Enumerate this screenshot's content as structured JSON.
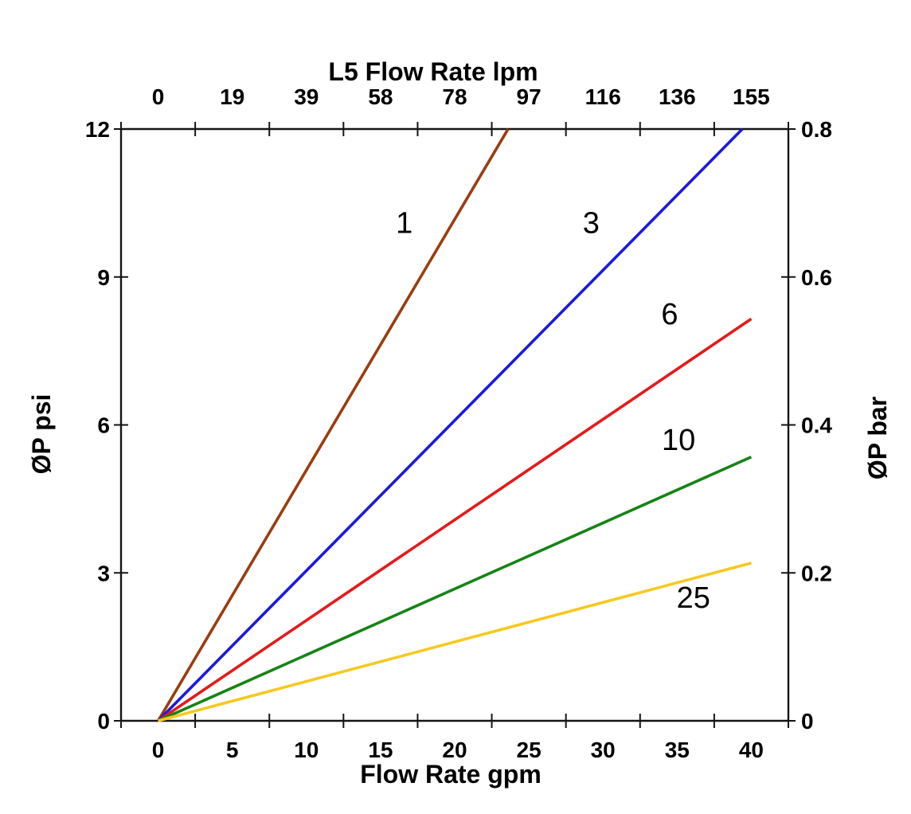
{
  "chart_data": {
    "type": "line",
    "title": "L5 Flow Rate lpm",
    "x_axis_bottom": {
      "label": "Flow Rate gpm",
      "unit": "gpm",
      "range": [
        0,
        40
      ],
      "tick_values": [
        0,
        5,
        10,
        15,
        20,
        25,
        30,
        35,
        40
      ],
      "tick_labels": [
        "0",
        "5",
        "10",
        "15",
        "20",
        "25",
        "30",
        "35",
        "40"
      ]
    },
    "x_axis_top": {
      "label": "L5 Flow Rate lpm",
      "unit": "lpm",
      "range": [
        0,
        155
      ],
      "tick_labels": [
        "0",
        "19",
        "39",
        "58",
        "78",
        "97",
        "116",
        "136",
        "155"
      ]
    },
    "y_axis_left": {
      "label": "ØP psi",
      "unit": "psi",
      "range": [
        0,
        12
      ],
      "tick_values": [
        0,
        3,
        6,
        9,
        12
      ],
      "tick_labels": [
        "0",
        "3",
        "6",
        "9",
        "12"
      ]
    },
    "y_axis_right": {
      "label": "ØP bar",
      "unit": "bar",
      "range": [
        0,
        0.8
      ],
      "tick_labels": [
        "0",
        "0.2",
        "0.4",
        "0.6",
        "0.8"
      ]
    },
    "grid": false,
    "legend": "inline-labels",
    "series": [
      {
        "name": "1",
        "color": "#9A3D0F",
        "x": [
          0,
          23.6
        ],
        "y": [
          0,
          12
        ],
        "label_at": [
          16.6,
          10.1
        ]
      },
      {
        "name": "3",
        "color": "#1A1ADF",
        "x": [
          0,
          39.4
        ],
        "y": [
          0,
          12
        ],
        "label_at": [
          29.2,
          10.1
        ]
      },
      {
        "name": "6",
        "color": "#E51A1A",
        "x": [
          0,
          40
        ],
        "y": [
          0,
          8.15
        ],
        "label_at": [
          34.5,
          8.25
        ]
      },
      {
        "name": "10",
        "color": "#168316",
        "x": [
          0,
          40
        ],
        "y": [
          0,
          5.35
        ],
        "label_at": [
          35.1,
          5.7
        ]
      },
      {
        "name": "25",
        "color": "#F6C91F",
        "x": [
          0,
          40
        ],
        "y": [
          0,
          3.2
        ],
        "label_at": [
          36.1,
          2.5
        ]
      }
    ]
  }
}
